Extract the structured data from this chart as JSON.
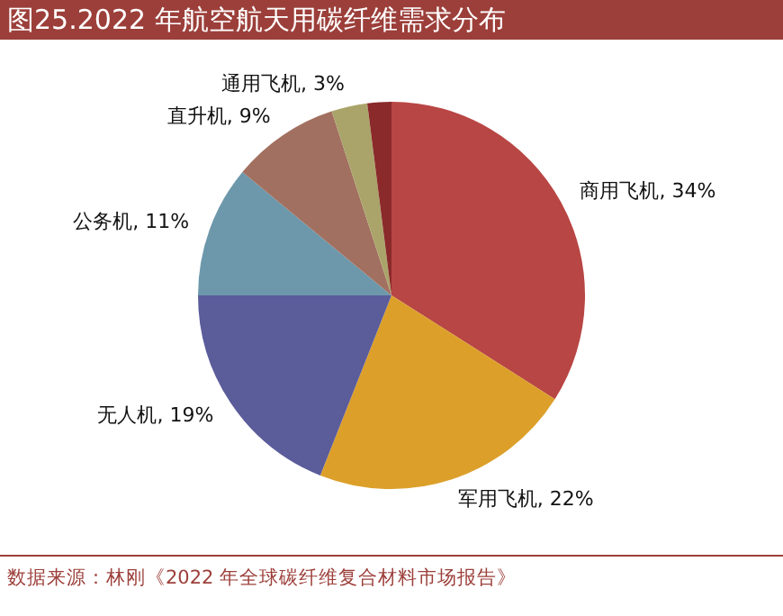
{
  "chart_data": {
    "type": "pie",
    "title": "图25.2022 年航空航天用碳纤维需求分布",
    "categories": [
      "商用飞机",
      "军用飞机",
      "无人机",
      "公务机",
      "直升机",
      "通用飞机",
      null
    ],
    "values": [
      34,
      22,
      19,
      11,
      9,
      3,
      2
    ],
    "colors": [
      "#b84644",
      "#dca02a",
      "#5b5c9a",
      "#6d98ab",
      "#a27060",
      "#aaa46a",
      "#8a2a2a"
    ],
    "value_labels": [
      "34%",
      "22%",
      "19%",
      "11%",
      "9%",
      "3%",
      null
    ],
    "legend": false,
    "annotations": [
      "数据来源：林刚《2022 年全球碳纤维复合材料市场报告》"
    ]
  }
}
